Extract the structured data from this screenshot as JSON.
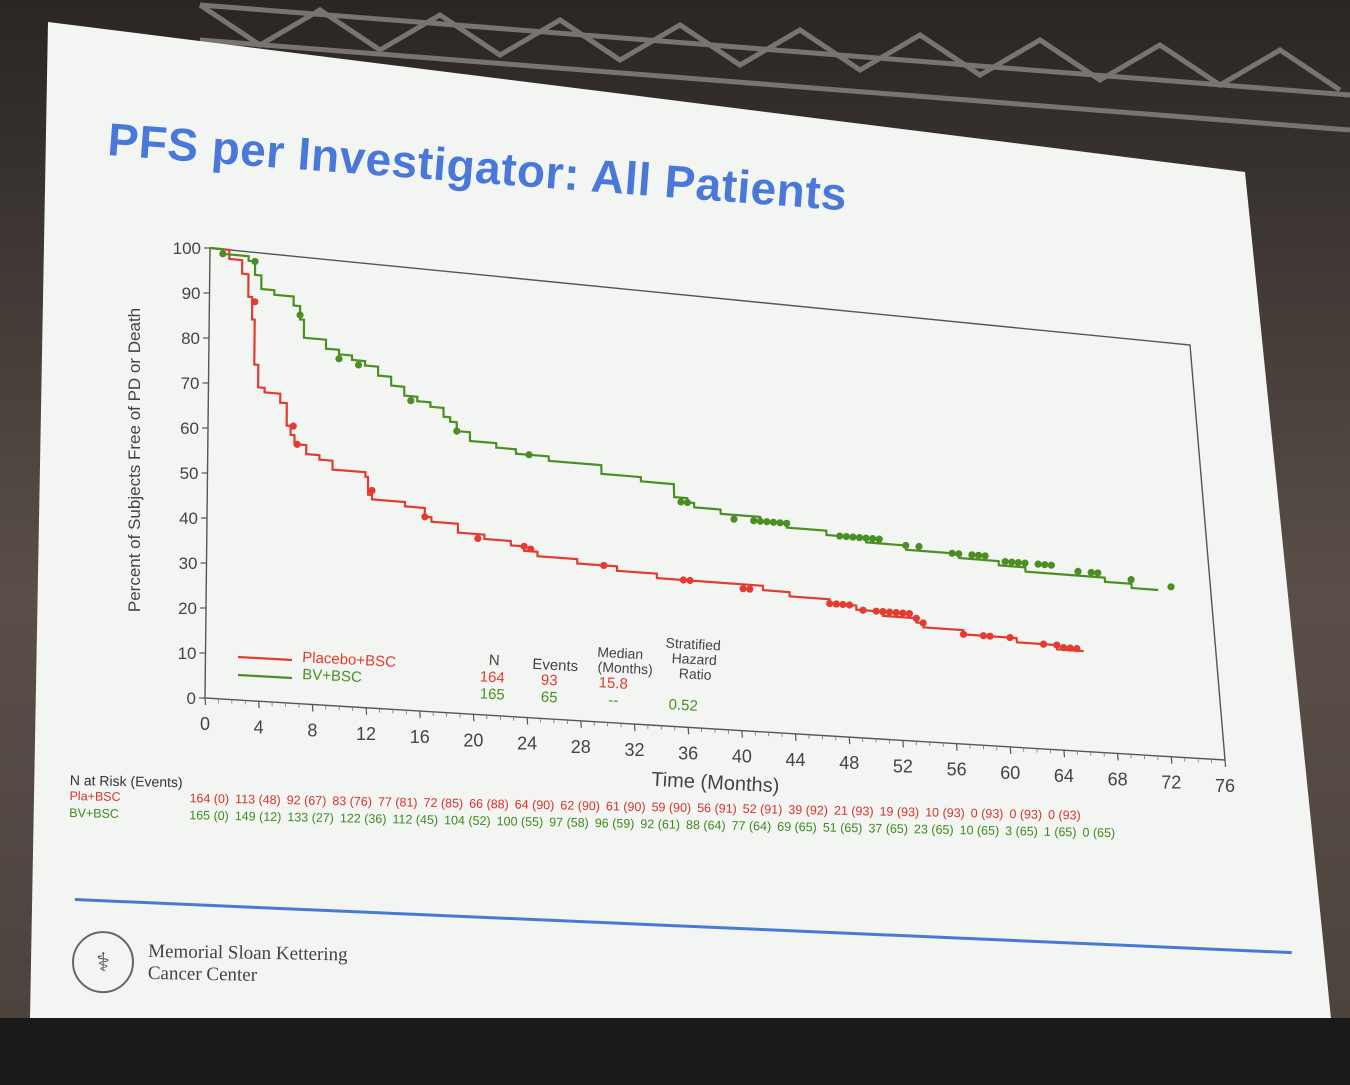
{
  "slide": {
    "title": "PFS per Investigator: All Patients",
    "logo_line1": "Memorial Sloan Kettering",
    "logo_line2": "Cancer Center"
  },
  "colors": {
    "title": "#4a78d8",
    "placebo": "#e33b2f",
    "bv": "#4b8e24"
  },
  "chart_data": {
    "type": "line",
    "title": "",
    "xlabel": "Time (Months)",
    "ylabel": "Percent of Subjects Free of PD or Death",
    "xlim": [
      0,
      76
    ],
    "ylim": [
      0,
      100
    ],
    "xticks": [
      0,
      4,
      8,
      12,
      16,
      20,
      24,
      28,
      32,
      36,
      40,
      44,
      48,
      52,
      56,
      60,
      64,
      68,
      72,
      76
    ],
    "yticks": [
      0,
      10,
      20,
      30,
      40,
      50,
      60,
      70,
      80,
      90,
      100
    ],
    "legend_position": "bottom-left",
    "series": [
      {
        "name": "Placebo+BSC",
        "color": "#e33b2f",
        "step": [
          [
            0,
            100
          ],
          [
            1.5,
            98
          ],
          [
            2.5,
            95
          ],
          [
            3,
            90
          ],
          [
            3.3,
            85
          ],
          [
            3.5,
            75
          ],
          [
            3.8,
            70
          ],
          [
            4.3,
            69
          ],
          [
            5.5,
            67
          ],
          [
            6,
            62
          ],
          [
            6.3,
            60
          ],
          [
            6.6,
            58
          ],
          [
            7.5,
            56
          ],
          [
            8.5,
            55
          ],
          [
            9.5,
            53
          ],
          [
            12,
            52
          ],
          [
            12.2,
            48
          ],
          [
            12.5,
            47
          ],
          [
            14,
            47
          ],
          [
            15,
            46
          ],
          [
            16.5,
            44
          ],
          [
            17,
            43
          ],
          [
            19,
            41
          ],
          [
            21,
            40
          ],
          [
            23,
            39
          ],
          [
            24,
            38
          ],
          [
            25,
            37
          ],
          [
            28,
            36
          ],
          [
            31,
            35
          ],
          [
            34,
            34
          ],
          [
            37,
            34
          ],
          [
            42,
            33
          ],
          [
            44,
            32
          ],
          [
            47,
            31
          ],
          [
            49,
            30
          ],
          [
            51,
            29
          ],
          [
            53,
            29
          ],
          [
            53.5,
            28
          ],
          [
            54,
            27
          ],
          [
            57,
            26
          ],
          [
            61,
            25
          ],
          [
            63,
            25
          ],
          [
            64,
            24
          ],
          [
            66,
            24
          ]
        ],
        "censor": [
          [
            3.5,
            89
          ],
          [
            6.5,
            62
          ],
          [
            6.8,
            58
          ],
          [
            12.5,
            49
          ],
          [
            16.5,
            44
          ],
          [
            20.5,
            40
          ],
          [
            24,
            39
          ],
          [
            24.5,
            38.5
          ],
          [
            30,
            36
          ],
          [
            36,
            34
          ],
          [
            36.5,
            34
          ],
          [
            40.5,
            33
          ],
          [
            41,
            33
          ],
          [
            47,
            31
          ],
          [
            47.5,
            31
          ],
          [
            48,
            31
          ],
          [
            48.5,
            31
          ],
          [
            49.5,
            30
          ],
          [
            50.5,
            30
          ],
          [
            51,
            30
          ],
          [
            51.5,
            30
          ],
          [
            52,
            30
          ],
          [
            52.5,
            30
          ],
          [
            53,
            30
          ],
          [
            53.5,
            29
          ],
          [
            54,
            28
          ],
          [
            57,
            26
          ],
          [
            58.5,
            26
          ],
          [
            59,
            26
          ],
          [
            60.5,
            26
          ],
          [
            63,
            25
          ],
          [
            64,
            25
          ],
          [
            64.5,
            24.5
          ],
          [
            65,
            24.5
          ],
          [
            65.5,
            24.5
          ]
        ]
      },
      {
        "name": "BV+BSC",
        "color": "#4b8e24",
        "step": [
          [
            0,
            100
          ],
          [
            1,
            99
          ],
          [
            3,
            98
          ],
          [
            3.5,
            95
          ],
          [
            4,
            92
          ],
          [
            5,
            91
          ],
          [
            6.5,
            89
          ],
          [
            7,
            86
          ],
          [
            7.3,
            82
          ],
          [
            9,
            80
          ],
          [
            10,
            79
          ],
          [
            11,
            78
          ],
          [
            12,
            77
          ],
          [
            13,
            75
          ],
          [
            14,
            73
          ],
          [
            15,
            71
          ],
          [
            16,
            70
          ],
          [
            17,
            69
          ],
          [
            18,
            67
          ],
          [
            18.5,
            66
          ],
          [
            19,
            64
          ],
          [
            20,
            62
          ],
          [
            22,
            61
          ],
          [
            23.5,
            60
          ],
          [
            25,
            60
          ],
          [
            26,
            59
          ],
          [
            30,
            57
          ],
          [
            33,
            56
          ],
          [
            35.5,
            53
          ],
          [
            36.5,
            52
          ],
          [
            37,
            51
          ],
          [
            39,
            50
          ],
          [
            42,
            49
          ],
          [
            44,
            48
          ],
          [
            47,
            47
          ],
          [
            50,
            46
          ],
          [
            53,
            45
          ],
          [
            57,
            44
          ],
          [
            60,
            43
          ],
          [
            62,
            42
          ],
          [
            65,
            42
          ],
          [
            68,
            41
          ],
          [
            70,
            40
          ],
          [
            72,
            40
          ]
        ],
        "censor": [
          [
            1,
            99
          ],
          [
            3.5,
            98
          ],
          [
            7,
            87
          ],
          [
            10,
            78
          ],
          [
            11.5,
            77
          ],
          [
            15.5,
            70
          ],
          [
            19,
            64
          ],
          [
            24.5,
            60
          ],
          [
            36,
            52
          ],
          [
            36.5,
            52
          ],
          [
            40,
            49
          ],
          [
            41.5,
            49
          ],
          [
            42,
            49
          ],
          [
            42.5,
            49
          ],
          [
            43,
            49
          ],
          [
            43.5,
            49
          ],
          [
            44,
            49
          ],
          [
            48,
            47
          ],
          [
            48.5,
            47
          ],
          [
            49,
            47
          ],
          [
            49.5,
            47
          ],
          [
            50,
            47
          ],
          [
            50.5,
            47
          ],
          [
            51,
            47
          ],
          [
            53,
            46
          ],
          [
            54,
            46
          ],
          [
            56.5,
            45
          ],
          [
            57,
            45
          ],
          [
            58,
            45
          ],
          [
            58.5,
            45
          ],
          [
            59,
            45
          ],
          [
            60.5,
            44
          ],
          [
            61,
            44
          ],
          [
            61.5,
            44
          ],
          [
            62,
            44
          ],
          [
            63,
            44
          ],
          [
            63.5,
            44
          ],
          [
            64,
            44
          ],
          [
            66,
            43
          ],
          [
            67,
            43
          ],
          [
            67.5,
            43
          ],
          [
            70,
            42
          ],
          [
            73,
            41
          ]
        ]
      }
    ],
    "stats_table": {
      "headers": [
        "N",
        "Events",
        "Median (Months)",
        "Stratified Hazard Ratio"
      ],
      "rows": [
        {
          "name": "Placebo+BSC",
          "n": "164",
          "events": "93",
          "median": "15.8",
          "hr": ""
        },
        {
          "name": "BV+BSC",
          "n": "165",
          "events": "65",
          "median": "--",
          "hr": "0.52"
        }
      ]
    },
    "at_risk": {
      "label": "N at Risk (Events)",
      "rows": [
        {
          "name": "Pla+BSC",
          "values": [
            "164 (0)",
            "113 (48)",
            "92 (67)",
            "83 (76)",
            "77 (81)",
            "72 (85)",
            "66 (88)",
            "64 (90)",
            "62 (90)",
            "61 (90)",
            "59 (90)",
            "56 (91)",
            "52 (91)",
            "39 (92)",
            "21 (93)",
            "19 (93)",
            "10 (93)",
            "0 (93)",
            "0 (93)",
            "0 (93)"
          ]
        },
        {
          "name": "BV+BSC",
          "values": [
            "165 (0)",
            "149 (12)",
            "133 (27)",
            "122 (36)",
            "112 (45)",
            "104 (52)",
            "100 (55)",
            "97 (58)",
            "96 (59)",
            "92 (61)",
            "88 (64)",
            "77 (64)",
            "69 (65)",
            "51 (65)",
            "37 (65)",
            "23 (65)",
            "10 (65)",
            "3 (65)",
            "1 (65)",
            "0 (65)"
          ]
        }
      ]
    }
  }
}
